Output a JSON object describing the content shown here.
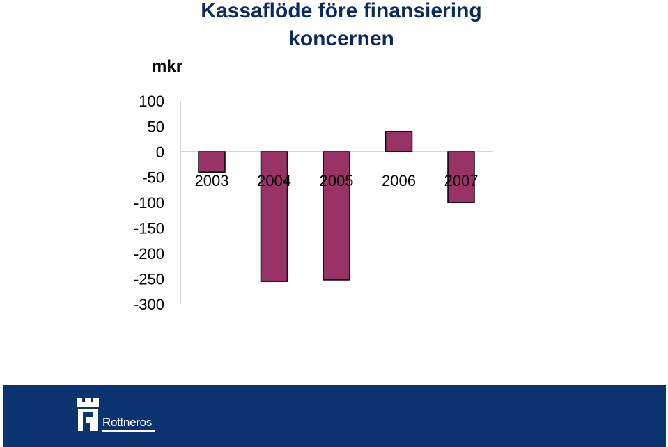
{
  "title_line1": "Kassaflöde före finansiering",
  "title_line2": "koncernen",
  "unit": "mkr",
  "brand": "Rottneros",
  "chart_data": {
    "type": "bar",
    "title": "Kassaflöde före finansiering koncernen",
    "ylabel": "mkr",
    "categories": [
      "2003",
      "2004",
      "2005",
      "2006",
      "2007"
    ],
    "values": [
      -40,
      -255,
      -252,
      40,
      -100
    ],
    "yticks": [
      100,
      50,
      0,
      -50,
      -100,
      -150,
      -200,
      -250,
      -300
    ],
    "ylim": [
      -300,
      100
    ],
    "bar_color": "#993366",
    "grid": false
  },
  "colors": {
    "footer": "#0a3370",
    "title": "#0a2a5e"
  }
}
